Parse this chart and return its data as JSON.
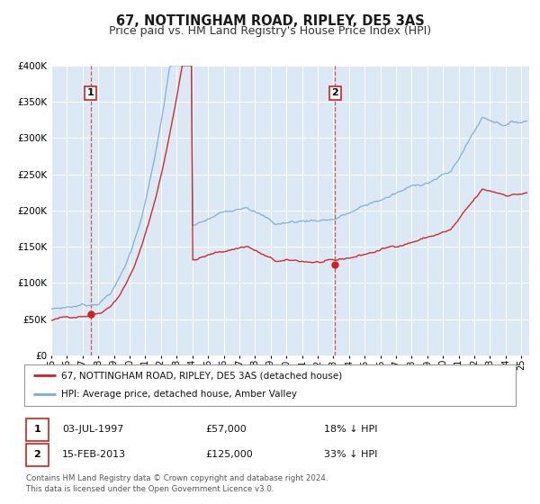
{
  "title": "67, NOTTINGHAM ROAD, RIPLEY, DE5 3AS",
  "subtitle": "Price paid vs. HM Land Registry's House Price Index (HPI)",
  "title_fontsize": 10.5,
  "subtitle_fontsize": 9,
  "background_color": "#ffffff",
  "plot_bg_color": "#dde8f5",
  "grid_color": "#ffffff",
  "red_color": "#cc2222",
  "blue_color": "#7aadd4",
  "ylim": [
    0,
    400000
  ],
  "yticks": [
    0,
    50000,
    100000,
    150000,
    200000,
    250000,
    300000,
    350000,
    400000
  ],
  "ytick_labels": [
    "£0",
    "£50K",
    "£100K",
    "£150K",
    "£200K",
    "£250K",
    "£300K",
    "£350K",
    "£400K"
  ],
  "xlim_start": 1995.0,
  "xlim_end": 2025.5,
  "xtick_years": [
    1995,
    1996,
    1997,
    1998,
    1999,
    2000,
    2001,
    2002,
    2003,
    2004,
    2005,
    2006,
    2007,
    2008,
    2009,
    2010,
    2011,
    2012,
    2013,
    2014,
    2015,
    2016,
    2017,
    2018,
    2019,
    2020,
    2021,
    2022,
    2023,
    2024,
    2025
  ],
  "marker1_x": 1997.5,
  "marker1_y": 57000,
  "marker2_x": 2013.12,
  "marker2_y": 125000,
  "legend_line1": "67, NOTTINGHAM ROAD, RIPLEY, DE5 3AS (detached house)",
  "legend_line2": "HPI: Average price, detached house, Amber Valley",
  "table_row1": [
    "1",
    "03-JUL-1997",
    "£57,000",
    "18% ↓ HPI"
  ],
  "table_row2": [
    "2",
    "15-FEB-2013",
    "£125,000",
    "33% ↓ HPI"
  ],
  "footer_line1": "Contains HM Land Registry data © Crown copyright and database right 2024.",
  "footer_line2": "This data is licensed under the Open Government Licence v3.0."
}
